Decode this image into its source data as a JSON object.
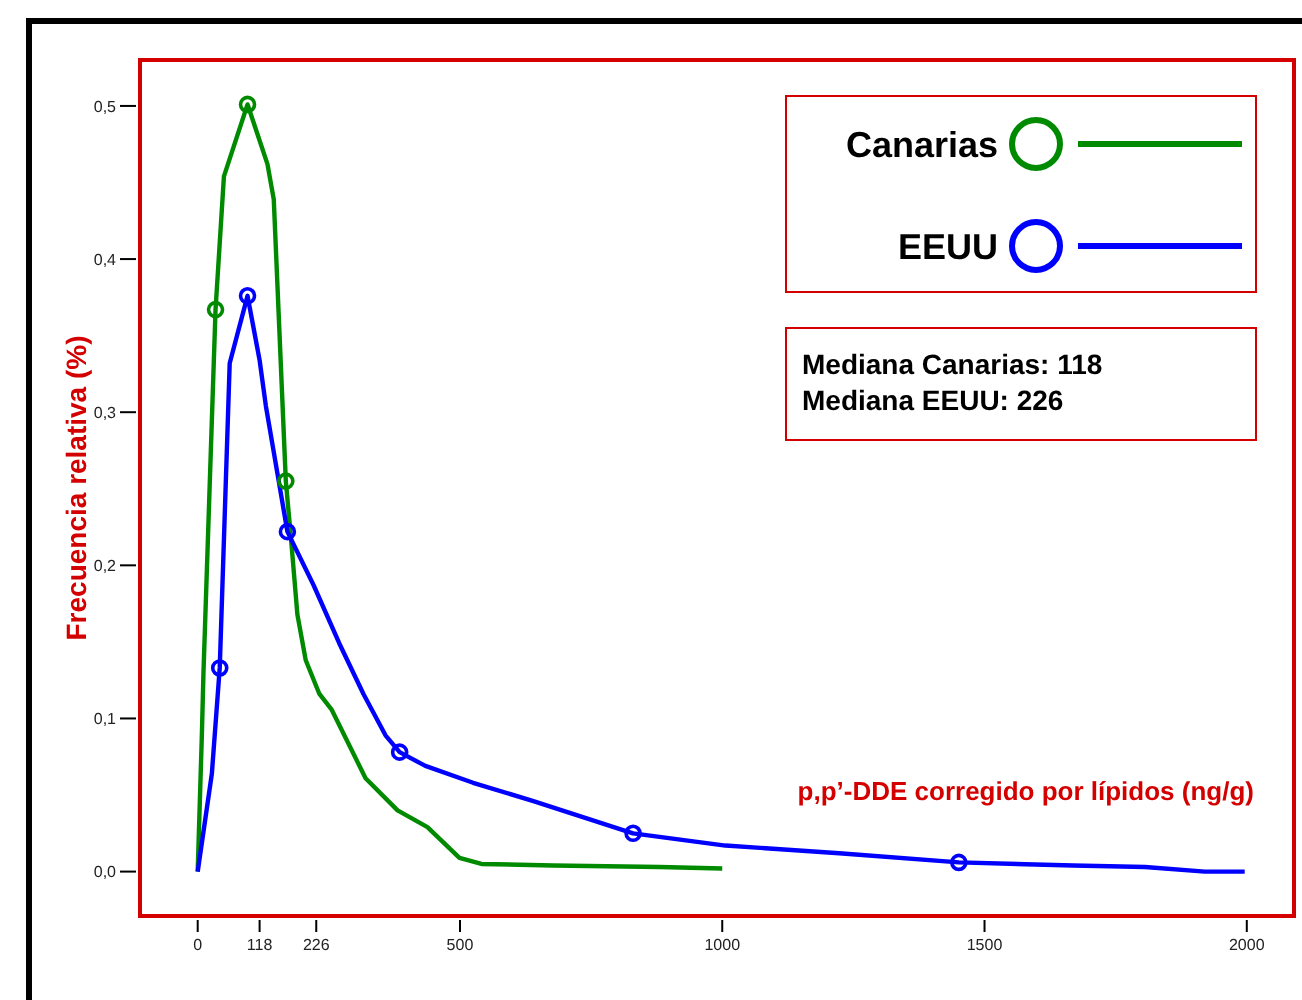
{
  "chart_data": {
    "type": "line",
    "xlabel": "p,p’-DDE corregido por lípidos (ng/g)",
    "ylabel": "Frecuencia relativa (%)",
    "annotations": [
      "Mediana Canarias: 118",
      "Mediana EEUU: 226"
    ],
    "xlim": [
      -110,
      2090
    ],
    "xticks": [
      0,
      118,
      226,
      500,
      1000,
      1500,
      2000
    ],
    "ylim": [
      -0.029,
      0.53
    ],
    "yticks": [
      {
        "value": 0,
        "label": "0,0"
      },
      {
        "value": 0.1,
        "label": "0,1"
      },
      {
        "value": 0.2,
        "label": "0,2"
      },
      {
        "value": 0.3,
        "label": "0,3"
      },
      {
        "value": 0.4,
        "label": "0,4"
      },
      {
        "value": 0.5,
        "label": "0,5"
      }
    ],
    "legend": "top right",
    "grid": false,
    "marker": "none",
    "line_style": "solid",
    "series": [
      {
        "name": "Canarias",
        "color": "#008a00",
        "x": [
          0,
          8,
          11,
          34,
          50,
          95,
          133,
          145,
          168,
          179,
          190,
          206,
          232,
          255,
          320,
          381,
          438,
          499,
          541,
          678,
          880,
          1000
        ],
        "values": [
          0,
          0.09,
          0.13,
          0.367,
          0.454,
          0.501,
          0.462,
          0.439,
          0.255,
          0.213,
          0.168,
          0.138,
          0.116,
          0.106,
          0.061,
          0.04,
          0.029,
          0.009,
          0.005,
          0.004,
          0.003,
          0.002
        ]
      },
      {
        "name": "EEUU",
        "color": "#0000ff",
        "x": [
          0,
          27,
          42,
          61,
          95,
          118,
          130,
          171,
          221,
          270,
          316,
          358,
          385,
          434,
          525,
          640,
          830,
          1006,
          1223,
          1451,
          1669,
          1806,
          1920,
          1996
        ],
        "values": [
          0,
          0.064,
          0.133,
          0.332,
          0.376,
          0.334,
          0.304,
          0.222,
          0.187,
          0.149,
          0.116,
          0.089,
          0.078,
          0.069,
          0.058,
          0.046,
          0.025,
          0.017,
          0.012,
          0.006,
          0.004,
          0.003,
          0,
          0
        ]
      },
      {
        "type": "scatter",
        "marker": "circle",
        "color": "#008a00",
        "x": [
          34,
          95,
          168
        ],
        "values": [
          0.367,
          0.501,
          0.255
        ]
      },
      {
        "type": "scatter",
        "marker": "circle",
        "color": "#0000ff",
        "x": [
          42,
          95,
          171,
          385,
          830,
          1451
        ],
        "values": [
          0.133,
          0.376,
          0.222,
          0.078,
          0.025,
          0.006
        ]
      }
    ]
  }
}
